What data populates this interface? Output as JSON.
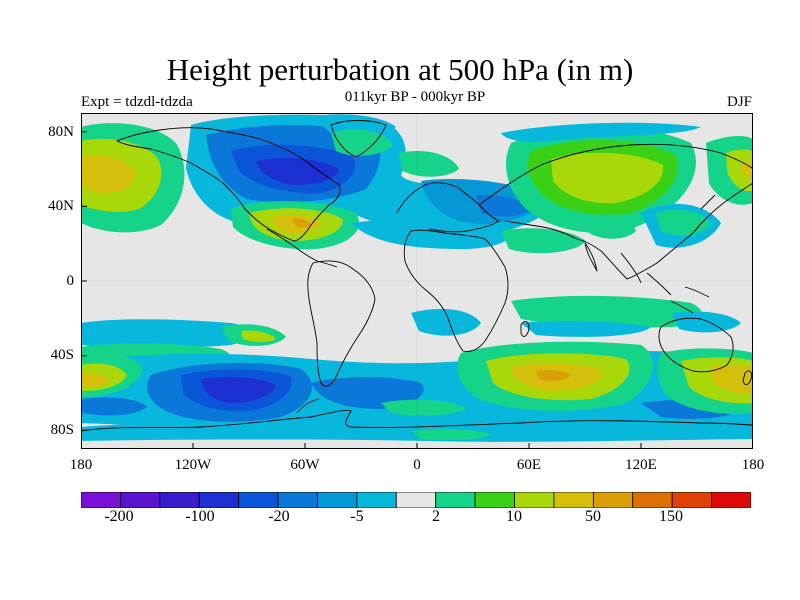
{
  "header": {
    "title": "Height perturbation at 500 hPa (in m)",
    "subtitle": "011kyr BP - 000kyr BP",
    "experiment": "Expt = tdzdl-tdzda",
    "season": "DJF"
  },
  "map": {
    "projection": "cylindrical-equidistant",
    "background_color": "#e6e6e6",
    "lat_ticks": [
      "80N",
      "40N",
      "0",
      "40S",
      "80S"
    ],
    "lon_ticks": [
      "180",
      "120W",
      "60W",
      "0",
      "60E",
      "120E",
      "180"
    ]
  },
  "colorbar": {
    "colors": [
      "#7a10d8",
      "#5a12d0",
      "#3a1ccc",
      "#1c30d2",
      "#0b55d8",
      "#0a78d8",
      "#0698d6",
      "#08b8dc",
      "#e6e6e6",
      "#16d38a",
      "#3ad016",
      "#a8d80a",
      "#d4c00a",
      "#d99e08",
      "#dc6e06",
      "#de4206",
      "#de0a0a"
    ],
    "labels": [
      "-200",
      "-100",
      "-20",
      "-5",
      "2",
      "10",
      "50",
      "150"
    ]
  }
}
